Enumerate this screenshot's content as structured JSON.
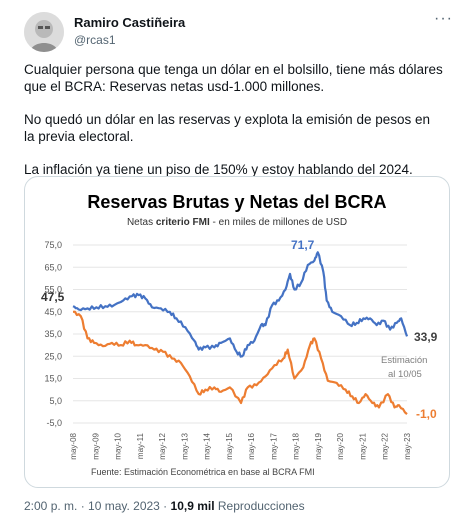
{
  "author": {
    "name": "Ramiro Castiñeira",
    "handle": "@rcas1"
  },
  "tweet": {
    "paragraphs": [
      "Cualquier persona que tenga un dólar en el bolsillo, tiene más dólares que el BCRA: Reservas netas usd-1.000 millones.",
      "No quedó un dólar en las reservas y explota la emisión de pesos en la previa electoral.",
      "La inflación ya tiene un piso de 150% y estoy hablando del 2024."
    ]
  },
  "meta": {
    "time": "2:00 p. m. · 10 may. 2023 · ",
    "views": "10,9 mil",
    "views_label": " Reproducciones"
  },
  "chart_data": {
    "type": "line",
    "title": "Reservas Brutas y Netas del BCRA",
    "subtitle_pre": "Netas ",
    "subtitle_bold": "criterio FMI",
    "subtitle_post": " - en miles de millones de USD",
    "source": "Fuente: Estimación Econométrica en base al BCRA FMI",
    "ylim": [
      -5,
      75
    ],
    "yticks": [
      "75,0",
      "65,0",
      "55,0",
      "45,0",
      "35,0",
      "25,0",
      "15,0",
      "5,0",
      "-5,0"
    ],
    "x_labels": [
      "may-08",
      "may-09",
      "may-10",
      "may-11",
      "may-12",
      "may-13",
      "may-14",
      "may-15",
      "may-16",
      "may-17",
      "may-18",
      "may-19",
      "may-20",
      "may-21",
      "may-22",
      "may-23"
    ],
    "annotations": {
      "start_brutas": "47,5",
      "peak_brutas": "71,7",
      "end_brutas": "33,9",
      "end_netas": "-1,0",
      "note_line1": "Estimación",
      "note_line2": "al 10/05"
    },
    "series": [
      {
        "color": "#4472c4",
        "points": [
          [
            2008.35,
            47.5
          ],
          [
            2008.6,
            46
          ],
          [
            2009.0,
            46.5
          ],
          [
            2009.4,
            47
          ],
          [
            2009.8,
            47.5
          ],
          [
            2010.2,
            48
          ],
          [
            2010.6,
            50
          ],
          [
            2011.0,
            52
          ],
          [
            2011.3,
            52.5
          ],
          [
            2011.6,
            51
          ],
          [
            2011.9,
            47
          ],
          [
            2012.3,
            46.5
          ],
          [
            2012.7,
            45
          ],
          [
            2013.0,
            42
          ],
          [
            2013.4,
            38
          ],
          [
            2013.8,
            32
          ],
          [
            2014.0,
            28
          ],
          [
            2014.3,
            29
          ],
          [
            2014.7,
            29
          ],
          [
            2015.0,
            31
          ],
          [
            2015.4,
            33
          ],
          [
            2015.7,
            27
          ],
          [
            2015.95,
            25
          ],
          [
            2016.2,
            30
          ],
          [
            2016.5,
            32
          ],
          [
            2016.8,
            39
          ],
          [
            2017.0,
            39
          ],
          [
            2017.3,
            48
          ],
          [
            2017.6,
            50
          ],
          [
            2017.9,
            55
          ],
          [
            2018.1,
            62
          ],
          [
            2018.3,
            55
          ],
          [
            2018.6,
            58
          ],
          [
            2018.9,
            66
          ],
          [
            2019.2,
            68
          ],
          [
            2019.35,
            71.7
          ],
          [
            2019.6,
            63
          ],
          [
            2019.75,
            50
          ],
          [
            2020.0,
            45
          ],
          [
            2020.4,
            43
          ],
          [
            2020.8,
            39
          ],
          [
            2021.1,
            40
          ],
          [
            2021.4,
            42
          ],
          [
            2021.7,
            42
          ],
          [
            2022.0,
            39
          ],
          [
            2022.3,
            41
          ],
          [
            2022.6,
            37
          ],
          [
            2022.9,
            40
          ],
          [
            2023.1,
            42
          ],
          [
            2023.36,
            33.9
          ]
        ]
      },
      {
        "color": "#ed7d31",
        "points": [
          [
            2008.35,
            45
          ],
          [
            2008.7,
            43
          ],
          [
            2009.0,
            33
          ],
          [
            2009.3,
            31
          ],
          [
            2009.7,
            29.5
          ],
          [
            2010.1,
            31
          ],
          [
            2010.5,
            30
          ],
          [
            2010.9,
            32
          ],
          [
            2011.2,
            30
          ],
          [
            2011.6,
            30
          ],
          [
            2012.0,
            28
          ],
          [
            2012.4,
            27
          ],
          [
            2012.8,
            24
          ],
          [
            2013.2,
            22
          ],
          [
            2013.6,
            16
          ],
          [
            2014.0,
            8
          ],
          [
            2014.3,
            10
          ],
          [
            2014.7,
            11
          ],
          [
            2015.0,
            9
          ],
          [
            2015.4,
            11
          ],
          [
            2015.9,
            4
          ],
          [
            2016.2,
            11
          ],
          [
            2016.6,
            12
          ],
          [
            2017.0,
            16
          ],
          [
            2017.4,
            21
          ],
          [
            2017.8,
            24
          ],
          [
            2018.0,
            28
          ],
          [
            2018.3,
            15
          ],
          [
            2018.7,
            20
          ],
          [
            2019.0,
            30
          ],
          [
            2019.2,
            33
          ],
          [
            2019.5,
            24
          ],
          [
            2019.8,
            14
          ],
          [
            2020.2,
            13
          ],
          [
            2020.6,
            10
          ],
          [
            2020.9,
            7
          ],
          [
            2021.2,
            4
          ],
          [
            2021.5,
            8
          ],
          [
            2021.8,
            4
          ],
          [
            2022.1,
            2
          ],
          [
            2022.5,
            8
          ],
          [
            2022.8,
            2
          ],
          [
            2023.0,
            3
          ],
          [
            2023.36,
            -1
          ]
        ]
      }
    ]
  }
}
